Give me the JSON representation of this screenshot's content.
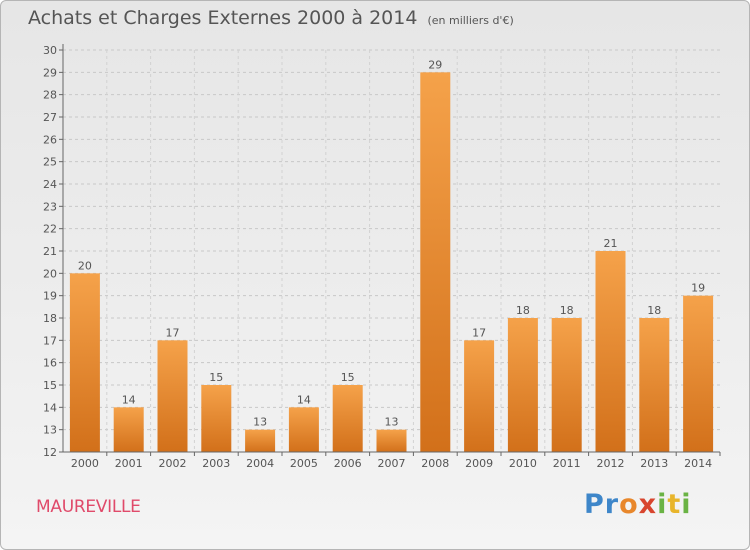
{
  "header": {
    "title": "Achats et Charges Externes 2000 à 2014",
    "subtitle": "(en milliers d'€)"
  },
  "footer": {
    "commune": "MAUREVILLE",
    "logo_text": "Proxiti",
    "logo_colors": [
      "#3e86c9",
      "#e8872b",
      "#6ab344",
      "#d8452e",
      "#e8b52b"
    ]
  },
  "chart_data": {
    "type": "bar",
    "title": "Achats et Charges Externes 2000 à 2014",
    "subtitle": "(en milliers d'€)",
    "categories": [
      "2000",
      "2001",
      "2002",
      "2003",
      "2004",
      "2005",
      "2006",
      "2007",
      "2008",
      "2009",
      "2010",
      "2011",
      "2012",
      "2013",
      "2014"
    ],
    "values": [
      20,
      14,
      17,
      15,
      13,
      14,
      15,
      13,
      29,
      17,
      18,
      18,
      21,
      18,
      19
    ],
    "ylim": [
      12,
      30
    ],
    "yticks": [
      12,
      13,
      14,
      15,
      16,
      17,
      18,
      19,
      20,
      21,
      22,
      23,
      24,
      25,
      26,
      27,
      28,
      29,
      30
    ],
    "grid": true,
    "legend": "none",
    "bar_color_light": "#f5a24a",
    "bar_color_dark": "#d2701a"
  }
}
